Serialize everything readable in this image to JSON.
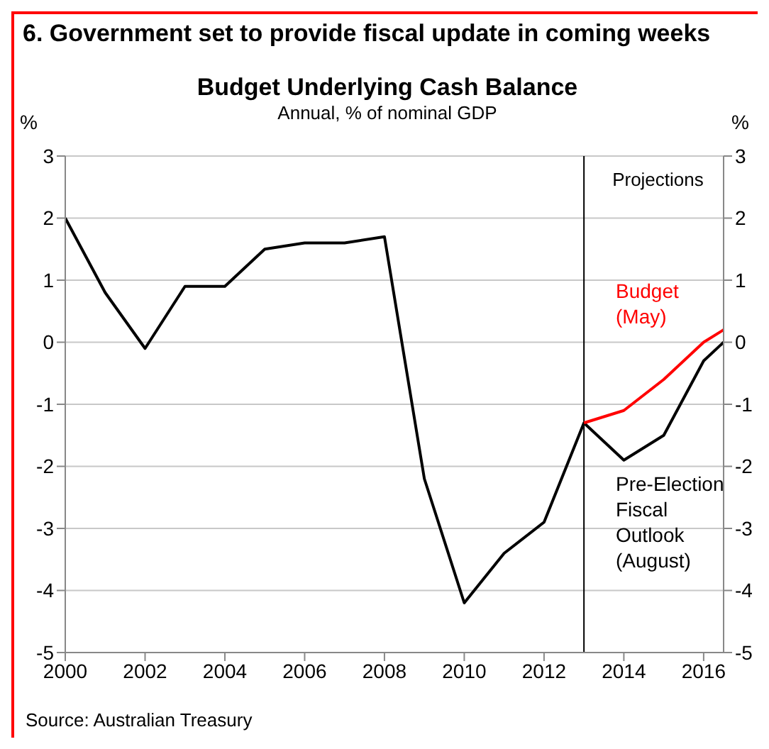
{
  "chart_data": {
    "type": "line",
    "title": "Budget Underlying Cash Balance",
    "subtitle": "Annual, % of nominal GDP",
    "ylabel": "%",
    "y2label": "%",
    "annotations": [
      "6. Government set to provide fiscal update in coming weeks",
      "Source: Australian Treasury"
    ],
    "series": [
      {
        "name": "Pre-Election Fiscal Outlook (August)",
        "color": "#000000",
        "x": [
          2000,
          2001,
          2002,
          2003,
          2004,
          2005,
          2006,
          2007,
          2008,
          2009,
          2010,
          2011,
          2012,
          2013,
          2014,
          2015,
          2016,
          2016.5
        ],
        "values": [
          2.0,
          0.8,
          -0.1,
          0.9,
          0.9,
          1.5,
          1.6,
          1.6,
          1.7,
          -2.2,
          -4.2,
          -3.4,
          -2.9,
          -1.3,
          -1.9,
          -1.5,
          -0.3,
          0.0
        ]
      },
      {
        "name": "Budget (May)",
        "color": "#ff0000",
        "x": [
          2013,
          2014,
          2015,
          2016,
          2016.5
        ],
        "values": [
          -1.3,
          -1.1,
          -0.6,
          0.0,
          0.2
        ]
      }
    ],
    "xlim": [
      2000,
      2016.5
    ],
    "xticks": [
      2000,
      2002,
      2004,
      2006,
      2008,
      2010,
      2012,
      2014,
      2016
    ],
    "ylim": [
      -5,
      3
    ],
    "yticks": [
      -5,
      -4,
      -3,
      -2,
      -1,
      0,
      1,
      2,
      3
    ],
    "y2lim": [
      -5,
      3
    ],
    "y2ticks": [
      -5,
      -4,
      -3,
      -2,
      -1,
      0,
      1,
      2,
      3
    ],
    "ref_lines": [
      {
        "axis": "x",
        "value": 2013,
        "label": "Projections",
        "color": "#000000"
      }
    ],
    "grid": "y",
    "legend": false,
    "marker": "none",
    "line_style": "solid"
  }
}
